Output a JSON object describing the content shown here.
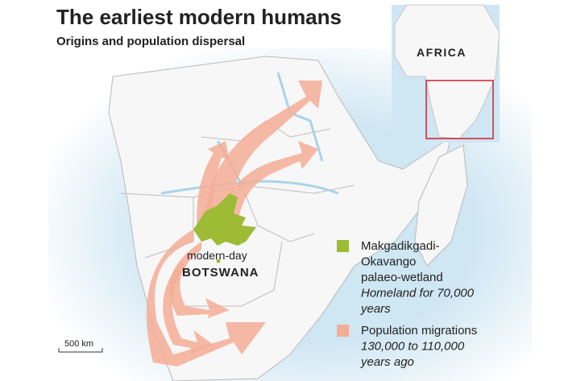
{
  "header": {
    "title": "The earliest modern humans",
    "subtitle": "Origins and population dispersal"
  },
  "inset": {
    "label": "AFRICA"
  },
  "map": {
    "place_note": "modern-day",
    "country": "BOTSWANA",
    "scale": "500 km"
  },
  "legend": {
    "items": [
      {
        "lines": [
          "Makgadikgadi-",
          "Okavango",
          "palaeo-wetland"
        ],
        "note_lines": [
          "Homeland for 70,000",
          "years"
        ]
      },
      {
        "lines": [
          "Population migrations"
        ],
        "note_lines": [
          "130,000 to 110,000",
          "years ago"
        ]
      }
    ]
  }
}
